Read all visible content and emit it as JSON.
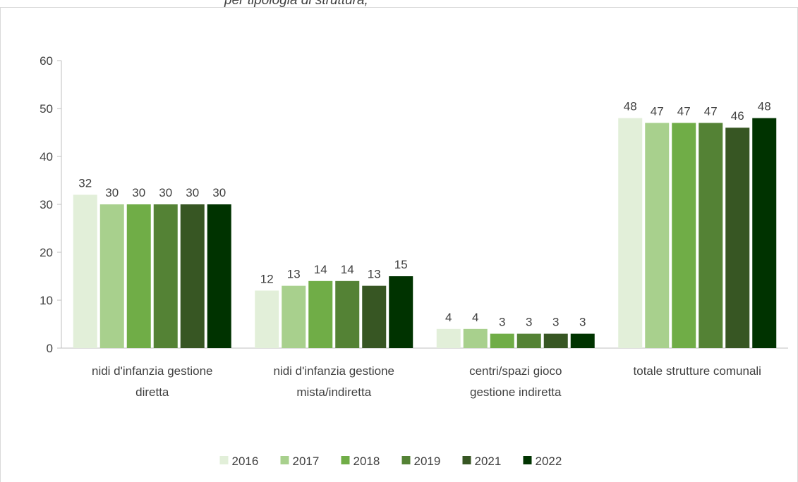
{
  "title_fragment": "per tipologia di struttura, ",
  "chart_data": {
    "type": "bar",
    "categories": [
      [
        "nidi d'infanzia gestione",
        "diretta"
      ],
      [
        "nidi d'infanzia gestione",
        "mista/indiretta"
      ],
      [
        "centri/spazi gioco",
        "gestione indiretta"
      ],
      [
        "totale strutture comunali"
      ]
    ],
    "series": [
      {
        "name": "2016",
        "color": "#e2efd9",
        "values": [
          32,
          12,
          4,
          48
        ]
      },
      {
        "name": "2017",
        "color": "#a8d08d",
        "values": [
          30,
          13,
          4,
          47
        ]
      },
      {
        "name": "2018",
        "color": "#70ad47",
        "values": [
          30,
          14,
          3,
          47
        ]
      },
      {
        "name": "2019",
        "color": "#548235",
        "values": [
          30,
          14,
          3,
          47
        ]
      },
      {
        "name": "2021",
        "color": "#375623",
        "values": [
          30,
          13,
          3,
          46
        ]
      },
      {
        "name": "2022",
        "color": "#003300",
        "values": [
          30,
          15,
          3,
          48
        ]
      }
    ],
    "ylim": [
      0,
      60
    ],
    "yticks": [
      0,
      10,
      20,
      30,
      40,
      50,
      60
    ],
    "grid": false,
    "legend": "bottom",
    "data_labels": true
  }
}
